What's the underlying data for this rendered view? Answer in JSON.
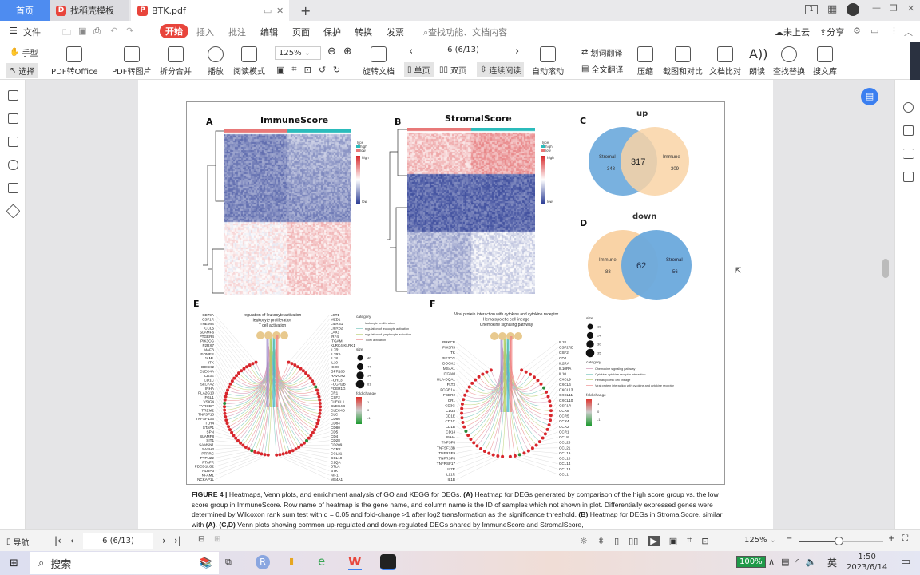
{
  "tabs": [
    {
      "label": "首页"
    },
    {
      "label": "找稻壳模板"
    },
    {
      "label": "BTK.pdf"
    }
  ],
  "menu": {
    "file": "文件",
    "items": [
      "开始",
      "插入",
      "批注",
      "编辑",
      "页面",
      "保护",
      "转换",
      "发票"
    ],
    "search_placeholder": "查找功能、文档内容",
    "cloud": "未上云",
    "share": "分享"
  },
  "toolbar": {
    "hand": "手型",
    "select": "选择",
    "pdf_office": "PDF转Office",
    "pdf_image": "PDF转图片",
    "split_merge": "拆分合并",
    "play": "播放",
    "read_mode": "阅读模式",
    "zoom": "125%",
    "rotate": "旋转文档",
    "page_value": "6 (6/13)",
    "single": "单页",
    "double": "双页",
    "continuous": "连续阅读",
    "auto_scroll": "自动滚动",
    "word_translate": "划词翻译",
    "full_translate": "全文翻译",
    "compress": "压缩",
    "screenshot": "截图和对比",
    "compare": "文档比对",
    "read_aloud": "朗读",
    "find_replace": "查找替换",
    "library": "搜文库"
  },
  "figure": {
    "panel_a": {
      "letter": "A",
      "title": "ImmuneScore"
    },
    "panel_b": {
      "letter": "B",
      "title": "StromalScore"
    },
    "heat_legend": {
      "type": "Type",
      "high": "high",
      "low": "low",
      "scale_high": "high",
      "scale_low": "low"
    },
    "panel_c": {
      "letter": "C",
      "title": "up",
      "left_name": "Stromal",
      "left_count": "348",
      "overlap": "317",
      "right_name": "Immune",
      "right_count": "309"
    },
    "panel_d": {
      "letter": "D",
      "title": "down",
      "left_name": "Immune",
      "left_count": "88",
      "overlap": "62",
      "right_name": "Stromal",
      "right_count": "56"
    },
    "panel_e": {
      "letter": "E",
      "hub_labels": [
        "regulation of leukocyte activation",
        "leukocyte proliferation",
        "T cell activation"
      ],
      "genes": [
        "CD79A",
        "CSF1R",
        "THEMIS",
        "CCL5",
        "SLAMF6",
        "PTGER4",
        "PIK3CG",
        "P2RX7",
        "MAFB",
        "EOMES",
        "JAML",
        "ITK",
        "DOCK2",
        "CLEC4A",
        "CD3E",
        "CD1C",
        "SLC7A2",
        "INHA",
        "PLA2G10",
        "FGL1",
        "VSIG4",
        "TYROBP",
        "TREM2",
        "TNFSF13",
        "TNFSF13B",
        "TLR4",
        "STAP1",
        "SPN",
        "SLAMF8",
        "SIT1",
        "SAMSN1",
        "SASH3",
        "PTPRC",
        "PTPN22",
        "PTAFR",
        "PDCD1LG2",
        "NLRP3",
        "NFAM1",
        "NCKAP1L",
        "LST1",
        "MZB1",
        "LILRB1",
        "LILRB2",
        "LAX1",
        "IRF4",
        "ITGAM",
        "KLRC4-KLRK1",
        "IL7R",
        "IL2RA",
        "IL18",
        "IL10",
        "ICOS",
        "GPR183",
        "HAVCR2",
        "FCRL3",
        "FCGR2B",
        "FCER1G",
        "CR1",
        "CSF2",
        "CLECL1",
        "CLEC4G",
        "CLEC4D",
        "CLC",
        "CD86",
        "CD84",
        "CD80",
        "CD5",
        "CD4",
        "CD28",
        "CD209",
        "CCR2",
        "CCL21",
        "CCL19",
        "C1QA",
        "BTLA",
        "BTK",
        "AIF1",
        "MS4A1"
      ],
      "category_title": "category",
      "categories": [
        "leukocyte proliferation",
        "regulation of leukocyte activation",
        "regulation of lymphocyte activation",
        "T cell activation"
      ],
      "size_title": "size",
      "sizes": [
        "40",
        "47",
        "54",
        "61"
      ],
      "fold_title": "fold change",
      "fold_ticks": [
        "1",
        "0",
        "-1"
      ]
    },
    "panel_f": {
      "letter": "F",
      "hub_labels": [
        "Viral protein interaction with cytokine and cytokine receptor",
        "Hematopoietic cell lineage",
        "Chemokine signaling pathway"
      ],
      "genes": [
        "PRKCB",
        "PIK3R5",
        "ITK",
        "PIK3CG",
        "DOCK2",
        "MS4A1",
        "ITGAM",
        "HLA-DQA1",
        "FLT3",
        "FCGR1A",
        "FCER2",
        "CR1",
        "CD3G",
        "CD33",
        "CD1E",
        "CD1C",
        "CD1B",
        "CD14",
        "INHA",
        "TNFSF8",
        "TNFSF13B",
        "TNFRSF9",
        "TNFRSF8",
        "TNFRSF17",
        "IL7R",
        "IL21R",
        "IL1B",
        "IL18",
        "CSF2RB",
        "CSF2",
        "CD4",
        "IL2RA",
        "IL10RA",
        "IL10",
        "CXCL9",
        "CXCL6",
        "CXCL13",
        "CXCL11",
        "CXCL10",
        "CSF1R",
        "CCR8",
        "CCR5",
        "CCR4",
        "CCR2",
        "CCR1",
        "CCL8",
        "CCL23",
        "CCL21",
        "CCL19",
        "CCL18",
        "CCL14",
        "CCL13",
        "CCL1"
      ],
      "size_title": "size",
      "sizes": [
        "19",
        "24",
        "30",
        "35"
      ],
      "category_title": "category",
      "categories": [
        "Chemokine signaling pathway",
        "Cytokine-cytokine receptor interaction",
        "Hematopoietic cell lineage",
        "Viral protein interaction with cytokine and cytokine receptor"
      ],
      "fold_title": "fold change",
      "fold_ticks": [
        "1",
        "0",
        "-1"
      ]
    },
    "caption": {
      "label": "FIGURE 4 |",
      "text1": " Heatmaps, Venn plots, and enrichment analysis of GO and KEGG for DEGs. ",
      "a": "(A)",
      "text2": " Heatmap for DEGs generated by comparison of the high score group vs. the low score group in ImmuneScore. Row name of heatmap is the gene name, and column name is the ID of samples which not shown in plot. Differentially expressed genes were determined by Wilcoxon rank sum test with q = 0.05 and fold-change >1 after log2 transformation as the significance threshold. ",
      "b": "(B)",
      "text3": " Heatmap for DEGs in StromalScore, similar with ",
      "a2": "(A)",
      "text4": ". ",
      "cd": "(C,D)",
      "text5": " Venn plots showing common up-regulated and down-regulated DEGs shared by ImmuneScore and StromalScore,"
    }
  },
  "status": {
    "nav": "导航",
    "page_value": "6 (6/13)",
    "zoom": "125%",
    "zoom_level": 0.5
  },
  "taskbar": {
    "search": "搜索",
    "battery": "100%",
    "ime": "英",
    "time": "1:50",
    "date": "2023/6/14"
  },
  "colors": {
    "home_tab": "#4e8cf0",
    "accent_red": "#e8453c",
    "venn_blue": "#6aa9dc",
    "venn_orange": "#f9d3a6"
  }
}
